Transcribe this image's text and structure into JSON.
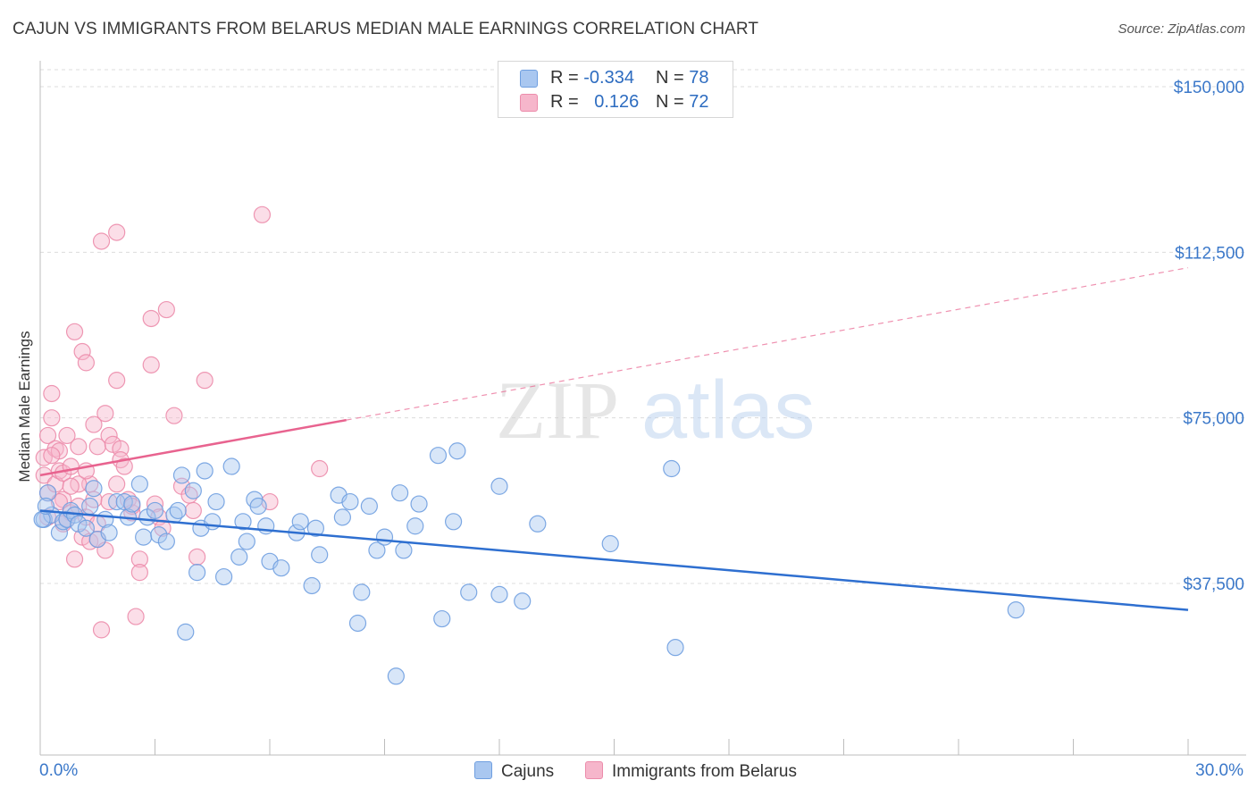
{
  "title": "CAJUN VS IMMIGRANTS FROM BELARUS MEDIAN MALE EARNINGS CORRELATION CHART",
  "source": "Source: ZipAtlas.com",
  "watermark": {
    "zip": "ZIP",
    "atlas": "atlas"
  },
  "colors": {
    "blue_fill": "#a9c7f0",
    "blue_stroke": "#6f9fe0",
    "blue_line": "#2e6fd0",
    "pink_fill": "#f6b6cb",
    "pink_stroke": "#ec8cab",
    "pink_line": "#e8638f",
    "tick_text": "#3b78c9",
    "grid": "#dcdcdc"
  },
  "legend": {
    "rows": [
      {
        "r_label": "R =",
        "r_value": "-0.334",
        "n_label": "N =",
        "n_value": "78",
        "swatch": "#a9c7f0",
        "swatch_border": "#6f9fe0"
      },
      {
        "r_label": "R =",
        "r_value": "0.126",
        "n_label": "N =",
        "n_value": "72",
        "swatch": "#f6b6cb",
        "swatch_border": "#ec8cab"
      }
    ]
  },
  "bottom_legend": [
    {
      "label": "Cajuns",
      "swatch": "#a9c7f0",
      "swatch_border": "#6f9fe0"
    },
    {
      "label": "Immigrants from Belarus",
      "swatch": "#f6b6cb",
      "swatch_border": "#ec8cab"
    }
  ],
  "chart_data": {
    "type": "scatter",
    "title": "CAJUN VS IMMIGRANTS FROM BELARUS MEDIAN MALE EARNINGS CORRELATION CHART",
    "xlabel": "",
    "ylabel": "Median Male Earnings",
    "x_tick_labels": [
      "0.0%",
      "30.0%"
    ],
    "xlim": [
      0,
      30
    ],
    "ylim": [
      0,
      155000
    ],
    "y_ticks": [
      {
        "value": 150000,
        "label": "$150,000"
      },
      {
        "value": 112500,
        "label": "$112,500"
      },
      {
        "value": 75000,
        "label": "$75,000"
      },
      {
        "value": 37500,
        "label": "$37,500"
      }
    ],
    "grid": true,
    "legend_position": "top-center",
    "series": [
      {
        "name": "Cajuns",
        "color": "#a9c7f0",
        "trend": {
          "x": [
            0,
            30
          ],
          "y": [
            54000,
            31500
          ],
          "style": "solid"
        },
        "points": [
          [
            0.1,
            52000
          ],
          [
            0.2,
            58000
          ],
          [
            0.3,
            53000
          ],
          [
            0.5,
            49000
          ],
          [
            0.6,
            51500
          ],
          [
            0.7,
            52000
          ],
          [
            0.8,
            54000
          ],
          [
            0.9,
            53000
          ],
          [
            1.0,
            51000
          ],
          [
            1.2,
            50000
          ],
          [
            1.3,
            55000
          ],
          [
            1.4,
            59000
          ],
          [
            1.5,
            47500
          ],
          [
            1.7,
            52000
          ],
          [
            1.8,
            49000
          ],
          [
            2.0,
            56000
          ],
          [
            2.2,
            56000
          ],
          [
            2.3,
            52500
          ],
          [
            2.4,
            55500
          ],
          [
            2.6,
            60000
          ],
          [
            2.7,
            48000
          ],
          [
            2.8,
            52500
          ],
          [
            3.0,
            54000
          ],
          [
            3.1,
            48500
          ],
          [
            3.3,
            47000
          ],
          [
            3.5,
            53000
          ],
          [
            3.6,
            54000
          ],
          [
            3.7,
            62000
          ],
          [
            3.8,
            26500
          ],
          [
            4.0,
            58500
          ],
          [
            4.1,
            40000
          ],
          [
            4.2,
            50000
          ],
          [
            4.3,
            63000
          ],
          [
            4.5,
            51500
          ],
          [
            4.6,
            56000
          ],
          [
            4.8,
            39000
          ],
          [
            5.0,
            64000
          ],
          [
            5.2,
            43500
          ],
          [
            5.3,
            51500
          ],
          [
            5.4,
            47000
          ],
          [
            5.6,
            56500
          ],
          [
            5.7,
            55000
          ],
          [
            5.9,
            50500
          ],
          [
            6.0,
            42500
          ],
          [
            6.3,
            41000
          ],
          [
            6.7,
            49000
          ],
          [
            6.8,
            51500
          ],
          [
            7.1,
            37000
          ],
          [
            7.2,
            50000
          ],
          [
            7.3,
            44000
          ],
          [
            7.8,
            57500
          ],
          [
            7.9,
            52500
          ],
          [
            8.1,
            56000
          ],
          [
            8.3,
            28500
          ],
          [
            8.4,
            35500
          ],
          [
            8.6,
            55000
          ],
          [
            8.8,
            45000
          ],
          [
            9.0,
            48000
          ],
          [
            9.3,
            16500
          ],
          [
            9.4,
            58000
          ],
          [
            9.5,
            45000
          ],
          [
            9.8,
            50500
          ],
          [
            9.9,
            55500
          ],
          [
            10.4,
            66500
          ],
          [
            10.5,
            29500
          ],
          [
            10.8,
            51500
          ],
          [
            10.9,
            67500
          ],
          [
            11.2,
            35500
          ],
          [
            12.0,
            59500
          ],
          [
            12.0,
            35000
          ],
          [
            12.6,
            33500
          ],
          [
            13.0,
            51000
          ],
          [
            14.9,
            46500
          ],
          [
            16.5,
            63500
          ],
          [
            16.6,
            23000
          ],
          [
            25.5,
            31500
          ],
          [
            0.05,
            52000
          ],
          [
            0.15,
            55000
          ]
        ]
      },
      {
        "name": "Immigrants from Belarus",
        "color": "#f6b6cb",
        "trend": {
          "x": [
            0,
            8
          ],
          "y": [
            62000,
            74500
          ],
          "style": "solid",
          "extended": {
            "x": [
              8,
              30
            ],
            "y": [
              74500,
              109000
            ],
            "style": "dashed"
          }
        },
        "points": [
          [
            0.1,
            62000
          ],
          [
            0.1,
            66000
          ],
          [
            0.2,
            71000
          ],
          [
            0.2,
            58000
          ],
          [
            0.3,
            80500
          ],
          [
            0.3,
            75000
          ],
          [
            0.4,
            68000
          ],
          [
            0.4,
            60000
          ],
          [
            0.5,
            67500
          ],
          [
            0.5,
            63000
          ],
          [
            0.6,
            62500
          ],
          [
            0.6,
            56500
          ],
          [
            0.7,
            71000
          ],
          [
            0.7,
            52000
          ],
          [
            0.8,
            64000
          ],
          [
            0.8,
            53500
          ],
          [
            0.9,
            94500
          ],
          [
            0.9,
            43000
          ],
          [
            1.0,
            68500
          ],
          [
            1.0,
            55000
          ],
          [
            1.1,
            90000
          ],
          [
            1.1,
            48000
          ],
          [
            1.2,
            87500
          ],
          [
            1.2,
            52500
          ],
          [
            1.3,
            60000
          ],
          [
            1.3,
            47000
          ],
          [
            1.4,
            73500
          ],
          [
            1.4,
            56500
          ],
          [
            1.5,
            68500
          ],
          [
            1.5,
            47500
          ],
          [
            1.6,
            115000
          ],
          [
            1.6,
            27000
          ],
          [
            1.7,
            76000
          ],
          [
            1.7,
            45000
          ],
          [
            1.8,
            71000
          ],
          [
            1.8,
            56000
          ],
          [
            1.9,
            69000
          ],
          [
            2.0,
            117000
          ],
          [
            2.0,
            83500
          ],
          [
            2.1,
            68000
          ],
          [
            2.1,
            65500
          ],
          [
            2.2,
            64000
          ],
          [
            2.3,
            56500
          ],
          [
            2.4,
            53500
          ],
          [
            2.5,
            30000
          ],
          [
            2.6,
            43000
          ],
          [
            2.6,
            40000
          ],
          [
            2.9,
            97500
          ],
          [
            2.9,
            87000
          ],
          [
            3.0,
            55500
          ],
          [
            3.1,
            52500
          ],
          [
            3.2,
            50000
          ],
          [
            3.3,
            99500
          ],
          [
            3.5,
            75500
          ],
          [
            3.7,
            59500
          ],
          [
            3.9,
            57500
          ],
          [
            4.0,
            54000
          ],
          [
            4.1,
            43500
          ],
          [
            4.3,
            83500
          ],
          [
            5.8,
            121000
          ],
          [
            6.0,
            56000
          ],
          [
            7.3,
            63500
          ],
          [
            0.2,
            52500
          ],
          [
            0.6,
            51000
          ],
          [
            1.0,
            60000
          ],
          [
            1.5,
            51000
          ],
          [
            2.0,
            60000
          ],
          [
            2.4,
            55000
          ],
          [
            0.3,
            66500
          ],
          [
            0.8,
            59500
          ],
          [
            1.2,
            63000
          ],
          [
            0.5,
            56000
          ]
        ]
      }
    ]
  }
}
